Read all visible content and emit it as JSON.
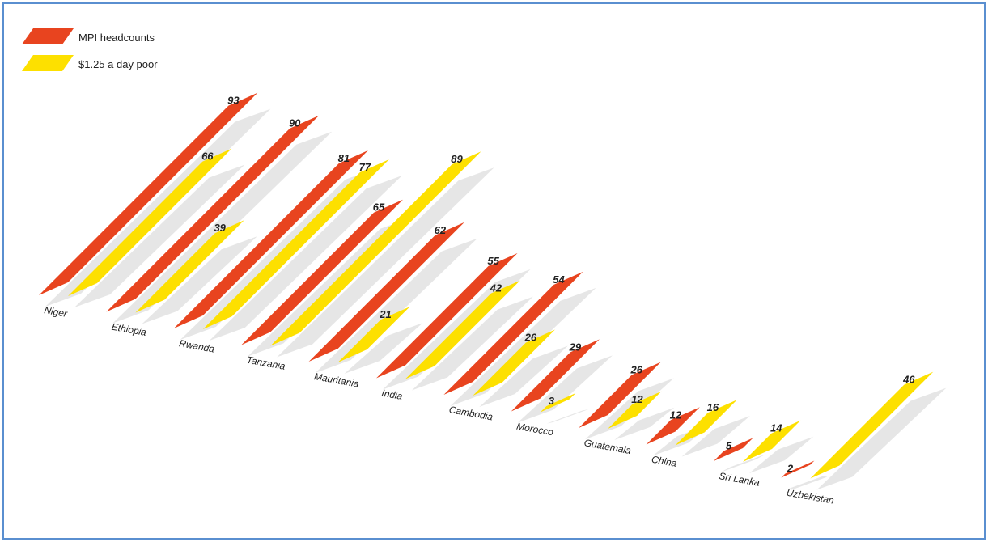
{
  "chart_data": {
    "type": "bar",
    "categories": [
      "Niger",
      "Ethiopia",
      "Rwanda",
      "Tanzania",
      "Mauritania",
      "India",
      "Cambodia",
      "Morocco",
      "Guatemala",
      "China",
      "Sri Lanka",
      "Uzbekistan"
    ],
    "series": [
      {
        "name": "MPI headcounts",
        "values": [
          93,
          90,
          81,
          65,
          62,
          55,
          54,
          29,
          26,
          12,
          5,
          2
        ]
      },
      {
        "name": "$1.25 a day  poor",
        "values": [
          66,
          39,
          77,
          89,
          21,
          42,
          26,
          3,
          12,
          16,
          14,
          46
        ]
      }
    ],
    "ylim": [
      0,
      100
    ],
    "legend_position": "top-left",
    "perspective": "3d-oblique",
    "colors": {
      "mpi": "#e8441f",
      "income": "#fde000",
      "shadow": "#e6e6e6",
      "frame": "#5a8fd0"
    }
  }
}
